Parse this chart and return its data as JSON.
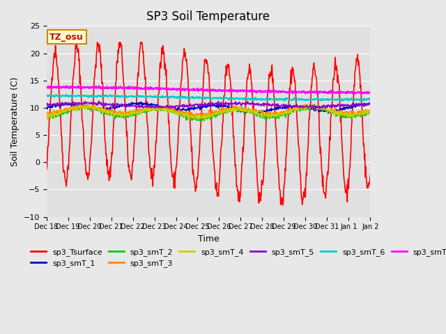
{
  "title": "SP3 Soil Temperature",
  "ylabel": "Soil Temperature (C)",
  "xlabel": "Time",
  "annotation": "TZ_osu",
  "ylim": [
    -10,
    25
  ],
  "background_color": "#e8e8e8",
  "plot_bg_color": "#e0e0e0",
  "series_colors": {
    "sp3_Tsurface": "#ff0000",
    "sp3_smT_1": "#0000cc",
    "sp3_smT_2": "#00cc00",
    "sp3_smT_3": "#ff8800",
    "sp3_smT_4": "#cccc00",
    "sp3_smT_5": "#8800cc",
    "sp3_smT_6": "#00cccc",
    "sp3_smT_7": "#ff00ff"
  },
  "x_tick_labels": [
    "Dec 18",
    "Dec 19",
    "Dec 20",
    "Dec 21",
    "Dec 22",
    "Dec 23",
    "Dec 24",
    "Dec 25",
    "Dec 26",
    "Dec 27",
    "Dec 28",
    "Dec 29",
    "Dec 30",
    "Dec 31",
    "Jan 1",
    "Jan 2"
  ],
  "num_days": 15,
  "points_per_day": 48
}
